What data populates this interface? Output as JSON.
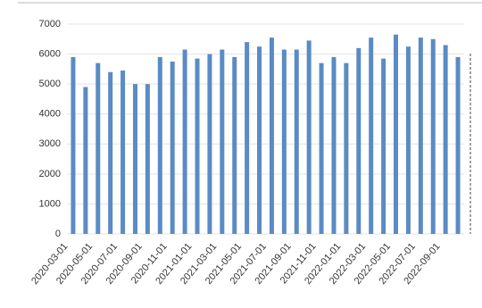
{
  "chart_data": {
    "type": "bar",
    "categories": [
      "2020-03-01",
      null,
      "2020-05-01",
      null,
      "2020-07-01",
      null,
      "2020-09-01",
      null,
      "2020-11-01",
      null,
      "2021-01-01",
      null,
      "2021-03-01",
      null,
      "2021-05-01",
      null,
      "2021-07-01",
      null,
      "2021-09-01",
      null,
      "2021-11-01",
      null,
      "2022-01-01",
      null,
      "2022-03-01",
      null,
      "2022-05-01",
      null,
      "2022-07-01",
      null,
      "2022-09-01",
      null
    ],
    "values": [
      5900,
      4900,
      5700,
      5400,
      5450,
      5000,
      5000,
      5900,
      5750,
      6150,
      5850,
      6000,
      6150,
      5900,
      6400,
      6250,
      6550,
      6150,
      6150,
      6450,
      5700,
      5900,
      5700,
      6200,
      6550,
      5850,
      6650,
      6250,
      6550,
      6500,
      6300,
      5900
    ],
    "color": "#5a8bc4",
    "ylim": [
      0,
      7000
    ],
    "yticks": [
      0,
      1000,
      2000,
      3000,
      4000,
      5000,
      6000,
      7000
    ],
    "grid": true
  }
}
